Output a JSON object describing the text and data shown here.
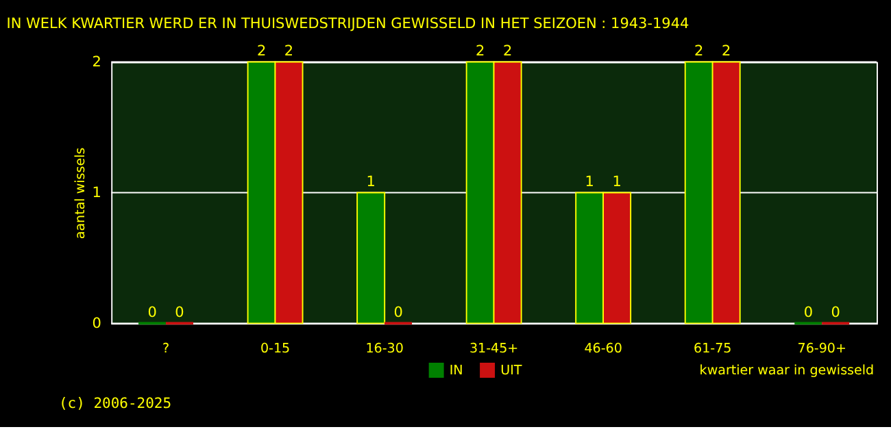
{
  "chart_data": {
    "type": "bar",
    "title": "IN WELK KWARTIER WERD ER IN THUISWEDSTRIJDEN GEWISSELD IN HET SEIZOEN : 1943-1944",
    "xlabel": "kwartier waar in gewisseld",
    "ylabel": "aantal wissels",
    "categories": [
      "?",
      "0-15",
      "16-30",
      "31-45+",
      "46-60",
      "61-75",
      "76-90+"
    ],
    "series": [
      {
        "name": "IN",
        "color": "#008000",
        "values": [
          0,
          2,
          1,
          2,
          1,
          2,
          0
        ]
      },
      {
        "name": "UIT",
        "color": "#cc1111",
        "values": [
          0,
          2,
          0,
          2,
          1,
          2,
          0
        ]
      }
    ],
    "ylim": [
      0,
      2
    ],
    "yticks": [
      0,
      1,
      2
    ],
    "grid": "y",
    "legend": "bottom",
    "data_labels": true,
    "annotations": [
      "(c) 2006-2025"
    ]
  }
}
